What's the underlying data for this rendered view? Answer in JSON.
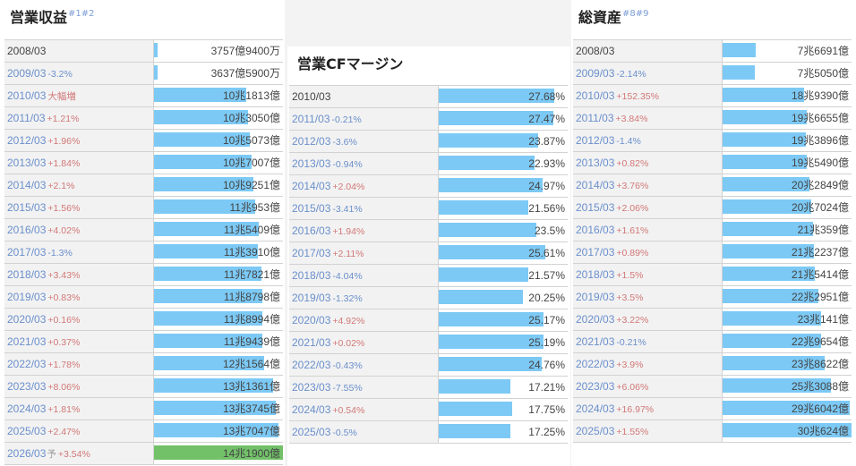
{
  "panels": [
    {
      "title": "営業収益",
      "ref": "#1#2",
      "scale_max": 14.19,
      "rows": [
        {
          "year": "2008/03",
          "change": "",
          "value_text": "3757億9400万",
          "value": 0.3758
        },
        {
          "year": "2009/03",
          "change": "-3.2%",
          "value_text": "3637億5900万",
          "value": 0.3638
        },
        {
          "year": "2010/03",
          "change": "大幅増",
          "value_text": "10兆1813億",
          "value": 10.1813
        },
        {
          "year": "2011/03",
          "change": "+1.21%",
          "value_text": "10兆3050億",
          "value": 10.305
        },
        {
          "year": "2012/03",
          "change": "+1.96%",
          "value_text": "10兆5073億",
          "value": 10.5073
        },
        {
          "year": "2013/03",
          "change": "+1.84%",
          "value_text": "10兆7007億",
          "value": 10.7007
        },
        {
          "year": "2014/03",
          "change": "+2.1%",
          "value_text": "10兆9251億",
          "value": 10.9251
        },
        {
          "year": "2015/03",
          "change": "+1.56%",
          "value_text": "11兆953億",
          "value": 11.0953
        },
        {
          "year": "2016/03",
          "change": "+4.02%",
          "value_text": "11兆5409億",
          "value": 11.5409
        },
        {
          "year": "2017/03",
          "change": "-1.3%",
          "value_text": "11兆3910億",
          "value": 11.391
        },
        {
          "year": "2018/03",
          "change": "+3.43%",
          "value_text": "11兆7821億",
          "value": 11.7821
        },
        {
          "year": "2019/03",
          "change": "+0.83%",
          "value_text": "11兆8798億",
          "value": 11.8798
        },
        {
          "year": "2020/03",
          "change": "+0.16%",
          "value_text": "11兆8994億",
          "value": 11.8994
        },
        {
          "year": "2021/03",
          "change": "+0.37%",
          "value_text": "11兆9439億",
          "value": 11.9439
        },
        {
          "year": "2022/03",
          "change": "+1.78%",
          "value_text": "12兆1564億",
          "value": 12.1564
        },
        {
          "year": "2023/03",
          "change": "+8.06%",
          "value_text": "13兆1361億",
          "value": 13.1361
        },
        {
          "year": "2024/03",
          "change": "+1.81%",
          "value_text": "13兆3745億",
          "value": 13.3745
        },
        {
          "year": "2025/03",
          "change": "+2.47%",
          "value_text": "13兆7047億",
          "value": 13.7047
        },
        {
          "year": "2026/03",
          "estimate": "予",
          "change": "+3.54%",
          "value_text": "14兆1900億",
          "value": 14.19,
          "forecast": true
        }
      ]
    },
    {
      "title": "営業CFマージン",
      "ref": "",
      "scale_max": 31,
      "rows": [
        {
          "year": "2010/03",
          "change": "",
          "value_text": "27.68%",
          "value": 27.68
        },
        {
          "year": "2011/03",
          "change": "-0.21%",
          "value_text": "27.47%",
          "value": 27.47
        },
        {
          "year": "2012/03",
          "change": "-3.6%",
          "value_text": "23.87%",
          "value": 23.87
        },
        {
          "year": "2013/03",
          "change": "-0.94%",
          "value_text": "22.93%",
          "value": 22.93
        },
        {
          "year": "2014/03",
          "change": "+2.04%",
          "value_text": "24.97%",
          "value": 24.97
        },
        {
          "year": "2015/03",
          "change": "-3.41%",
          "value_text": "21.56%",
          "value": 21.56
        },
        {
          "year": "2016/03",
          "change": "+1.94%",
          "value_text": "23.5%",
          "value": 23.5
        },
        {
          "year": "2017/03",
          "change": "+2.11%",
          "value_text": "25.61%",
          "value": 25.61
        },
        {
          "year": "2018/03",
          "change": "-4.04%",
          "value_text": "21.57%",
          "value": 21.57
        },
        {
          "year": "2019/03",
          "change": "-1.32%",
          "value_text": "20.25%",
          "value": 20.25
        },
        {
          "year": "2020/03",
          "change": "+4.92%",
          "value_text": "25.17%",
          "value": 25.17
        },
        {
          "year": "2021/03",
          "change": "+0.02%",
          "value_text": "25.19%",
          "value": 25.19
        },
        {
          "year": "2022/03",
          "change": "-0.43%",
          "value_text": "24.76%",
          "value": 24.76
        },
        {
          "year": "2023/03",
          "change": "-7.55%",
          "value_text": "17.21%",
          "value": 17.21
        },
        {
          "year": "2024/03",
          "change": "+0.54%",
          "value_text": "17.75%",
          "value": 17.75
        },
        {
          "year": "2025/03",
          "change": "-0.5%",
          "value_text": "17.25%",
          "value": 17.25
        }
      ]
    },
    {
      "title": "総資産",
      "ref": "#8#9",
      "scale_max": 30.0624,
      "rows": [
        {
          "year": "2008/03",
          "change": "",
          "value_text": "7兆6691億",
          "value": 7.6691
        },
        {
          "year": "2009/03",
          "change": "-2.14%",
          "value_text": "7兆5050億",
          "value": 7.505
        },
        {
          "year": "2010/03",
          "change": "+152.35%",
          "value_text": "18兆9390億",
          "value": 18.939
        },
        {
          "year": "2011/03",
          "change": "+3.84%",
          "value_text": "19兆6655億",
          "value": 19.6655
        },
        {
          "year": "2012/03",
          "change": "-1.4%",
          "value_text": "19兆3896億",
          "value": 19.3896
        },
        {
          "year": "2013/03",
          "change": "+0.82%",
          "value_text": "19兆5490億",
          "value": 19.549
        },
        {
          "year": "2014/03",
          "change": "+3.76%",
          "value_text": "20兆2849億",
          "value": 20.2849
        },
        {
          "year": "2015/03",
          "change": "+2.06%",
          "value_text": "20兆7024億",
          "value": 20.7024
        },
        {
          "year": "2016/03",
          "change": "+1.61%",
          "value_text": "21兆359億",
          "value": 21.0359
        },
        {
          "year": "2017/03",
          "change": "+0.89%",
          "value_text": "21兆2237億",
          "value": 21.2237
        },
        {
          "year": "2018/03",
          "change": "+1.5%",
          "value_text": "21兆5414億",
          "value": 21.5414
        },
        {
          "year": "2019/03",
          "change": "+3.5%",
          "value_text": "22兆2951億",
          "value": 22.2951
        },
        {
          "year": "2020/03",
          "change": "+3.22%",
          "value_text": "23兆141億",
          "value": 23.0141
        },
        {
          "year": "2021/03",
          "change": "-0.21%",
          "value_text": "22兆9654億",
          "value": 22.9654
        },
        {
          "year": "2022/03",
          "change": "+3.9%",
          "value_text": "23兆8622億",
          "value": 23.8622
        },
        {
          "year": "2023/03",
          "change": "+6.06%",
          "value_text": "25兆3088億",
          "value": 25.3088
        },
        {
          "year": "2024/03",
          "change": "+16.97%",
          "value_text": "29兆6042億",
          "value": 29.6042
        },
        {
          "year": "2025/03",
          "change": "+1.55%",
          "value_text": "30兆624億",
          "value": 30.0624
        }
      ]
    }
  ],
  "colors": {
    "bar": "#7cc9f5",
    "forecast_bar": "#72c169",
    "positive": "#d27777",
    "negative": "#6a8fcc"
  }
}
